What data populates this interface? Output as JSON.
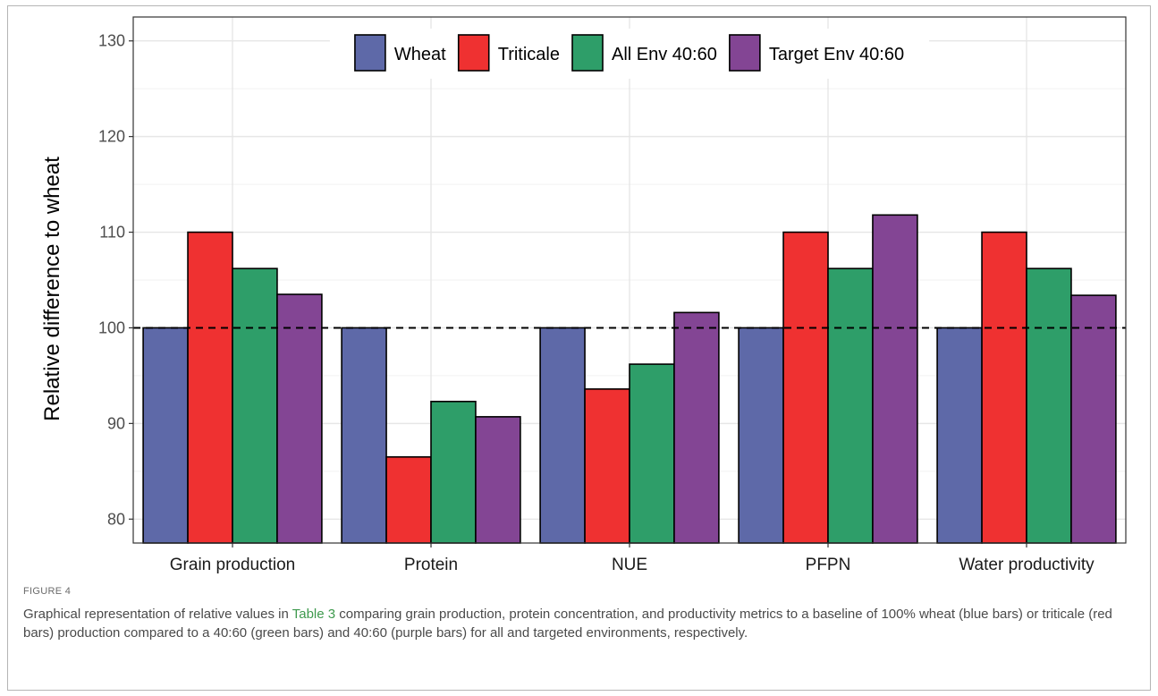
{
  "figure": {
    "label": "FIGURE 4",
    "caption_pre": "Graphical representation of relative values in ",
    "caption_link": "Table 3",
    "caption_post": " comparing grain production, protein concentration, and productivity metrics to a baseline of 100% wheat (blue bars) or triticale (red bars) production compared to a 40:60 (green bars) and 40:60 (purple bars) for all and targeted environments, respectively."
  },
  "chart_data": {
    "type": "bar",
    "title": "",
    "xlabel": "",
    "ylabel": "Relative difference to wheat",
    "ylim": [
      77.5,
      132.5
    ],
    "yticks": [
      80,
      90,
      100,
      110,
      120,
      130
    ],
    "grid": true,
    "legend_position": "top",
    "reference_line": {
      "y": 100,
      "style": "dashed"
    },
    "categories": [
      "Grain production",
      "Protein",
      "NUE",
      "PFPN",
      "Water productivity"
    ],
    "series": [
      {
        "name": "Wheat",
        "color": "#5e69a8",
        "values": [
          100,
          100,
          100,
          100,
          100
        ]
      },
      {
        "name": "Triticale",
        "color": "#ef3131",
        "values": [
          110,
          86.5,
          93.6,
          110,
          110
        ]
      },
      {
        "name": "All Env 40:60",
        "color": "#2e9e69",
        "values": [
          106.2,
          92.3,
          96.2,
          106.2,
          106.2
        ]
      },
      {
        "name": "Target Env 40:60",
        "color": "#834594",
        "values": [
          103.5,
          90.7,
          101.6,
          111.8,
          103.4
        ]
      }
    ]
  }
}
